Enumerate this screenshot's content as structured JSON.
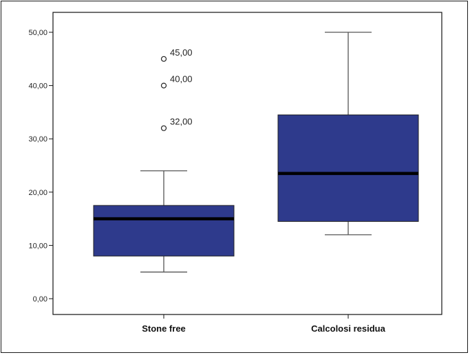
{
  "chart_data": {
    "type": "box",
    "title": "",
    "xlabel": "",
    "ylabel": "",
    "ylim": [
      0,
      50
    ],
    "yticks": [
      "0,00",
      "10,00",
      "20,00",
      "30,00",
      "40,00",
      "50,00"
    ],
    "grid": false,
    "box_color": "#2e3a8c",
    "median_color": "#000000",
    "categories": [
      "Stone free",
      "Calcolosi residua"
    ],
    "boxes": [
      {
        "category": "Stone free",
        "whisker_low": 5,
        "q1": 8,
        "median": 15,
        "q3": 17.5,
        "whisker_high": 24,
        "outliers": [
          {
            "value": 32,
            "label": "32,00"
          },
          {
            "value": 40,
            "label": "40,00"
          },
          {
            "value": 45,
            "label": "45,00"
          }
        ]
      },
      {
        "category": "Calcolosi residua",
        "whisker_low": 12,
        "q1": 14.5,
        "median": 23.5,
        "q3": 34.5,
        "whisker_high": 50,
        "outliers": []
      }
    ]
  }
}
